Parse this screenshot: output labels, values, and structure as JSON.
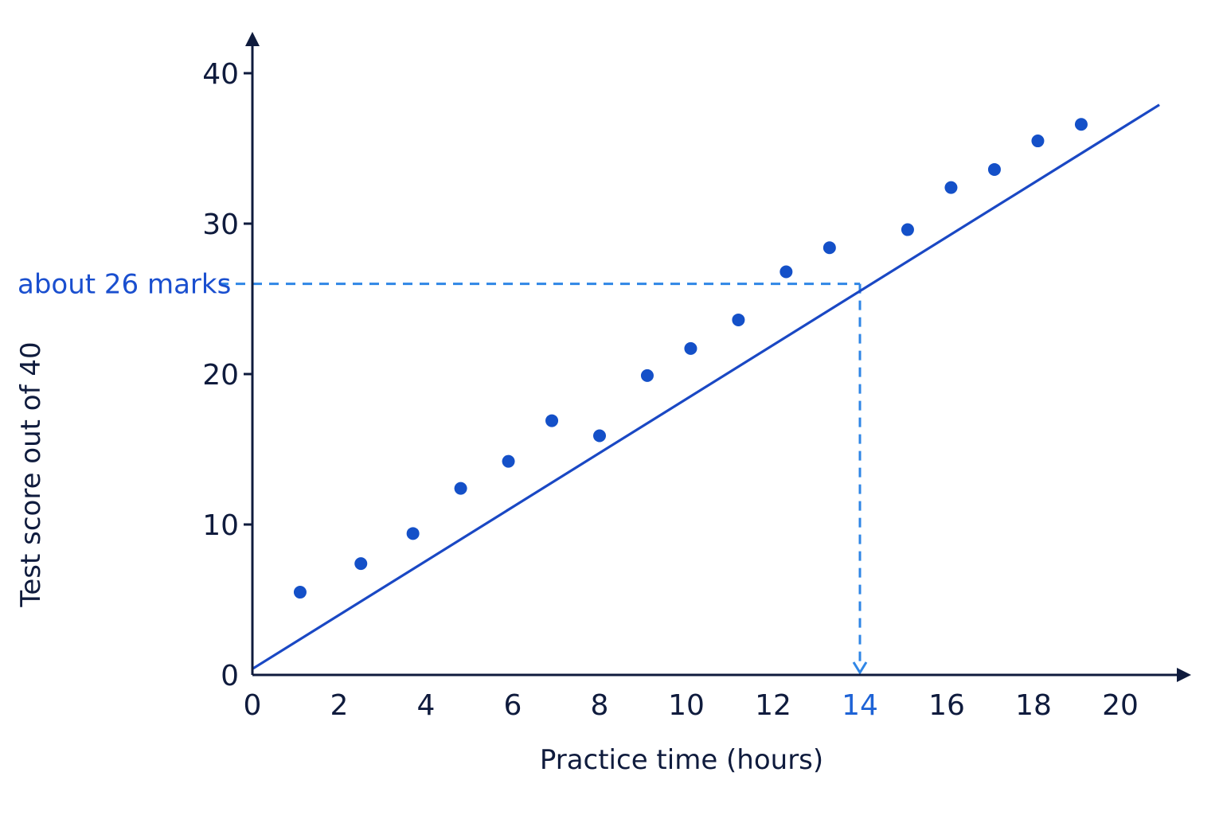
{
  "chart_data": {
    "type": "scatter",
    "title": "",
    "xlabel": "Practice time (hours)",
    "ylabel": "Test score out of 40",
    "xlim": [
      0,
      21
    ],
    "ylim": [
      0,
      40
    ],
    "x_ticks": [
      "0",
      "2",
      "4",
      "6",
      "8",
      "10",
      "12",
      "14",
      "16",
      "18",
      "20"
    ],
    "y_ticks": [
      "0",
      "10",
      "20",
      "30",
      "40"
    ],
    "highlighted_x_tick": "14",
    "grid": false,
    "series": [
      {
        "x": [
          1.1,
          2.5,
          3.7,
          4.8,
          5.9,
          6.9,
          8.0,
          9.1,
          10.1,
          11.2,
          12.3,
          13.3,
          15.1,
          16.1,
          17.1,
          18.1,
          19.1
        ],
        "y": [
          5.5,
          7.4,
          9.4,
          12.4,
          14.2,
          16.9,
          15.9,
          19.9,
          21.7,
          23.6,
          26.8,
          28.4,
          29.6,
          32.4,
          33.6,
          35.5,
          36.6
        ]
      }
    ],
    "trend_line": {
      "x": [
        0,
        20.9
      ],
      "y": [
        0.4,
        37.9
      ]
    },
    "reading": {
      "x": 14,
      "y": 26,
      "label": "about 26 marks"
    },
    "colors": {
      "axis": "#0f1b3d",
      "points": "#1450c8",
      "trend_line": "#1a48c4",
      "reading_guide": "#2f86e6",
      "annotation_text": "#1a4fcf"
    }
  }
}
